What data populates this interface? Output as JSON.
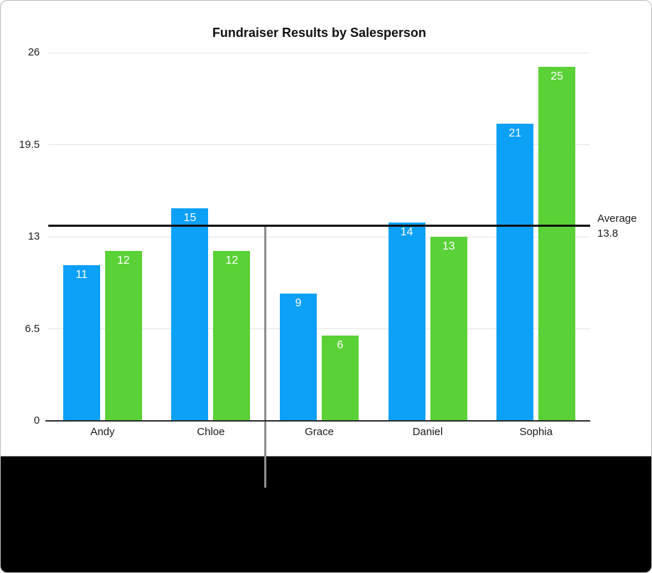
{
  "chart_data": {
    "type": "bar",
    "title": "Fundraiser Results by Salesperson",
    "categories": [
      "Andy",
      "Chloe",
      "Grace",
      "Daniel",
      "Sophia"
    ],
    "series": [
      {
        "name": "blue",
        "color": "#0da0f7",
        "values": [
          11,
          15,
          9,
          14,
          21
        ]
      },
      {
        "name": "green",
        "color": "#5ad136",
        "values": [
          12,
          12,
          6,
          13,
          25
        ]
      }
    ],
    "y_ticks": [
      0,
      6.5,
      13,
      19.5,
      26
    ],
    "y_tick_labels": [
      "0",
      "6.5",
      "13",
      "19.5",
      "26"
    ],
    "ylim": [
      0,
      26
    ],
    "xlabel": "",
    "ylabel": "",
    "grid": true,
    "legend_position": "none",
    "bar_value_labels": true,
    "average_line": {
      "value": 13.8,
      "label_line1": "Average",
      "label_line2": "13.8"
    },
    "annotations": {
      "callout_line": {
        "points_to": "average_line",
        "at_category_boundary": "Chloe|Grace"
      }
    }
  },
  "colors": {
    "bar_blue": "#0da0f7",
    "bar_green": "#5ad136",
    "average_line": "#131313",
    "gridline": "#e4e4e4",
    "axis": "#2d2d2d",
    "callout_line": "#8e8e8e",
    "background": "#ffffff",
    "bottom_margin": "#000000",
    "text": "#1b1b1b"
  }
}
